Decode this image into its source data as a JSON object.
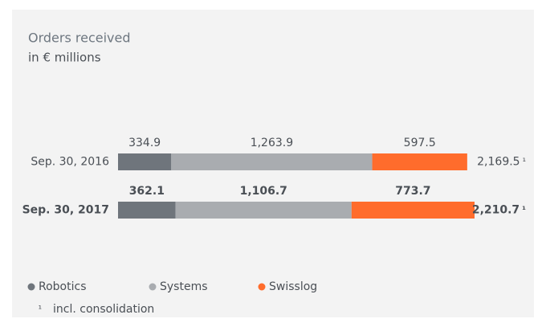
{
  "chart_data": {
    "type": "stacked-bar-horizontal",
    "title": "Orders received",
    "subtitle": "in € millions",
    "categories": [
      "Sep. 30, 2016",
      "Sep. 30, 2017"
    ],
    "series": [
      {
        "name": "Robotics",
        "color": "#6f757c",
        "values": [
          334.9,
          362.1
        ]
      },
      {
        "name": "Systems",
        "color": "#a9acb0",
        "values": [
          1263.9,
          1106.7
        ],
        "value_labels": [
          "1,263.9",
          "1,106.7"
        ]
      },
      {
        "name": "Swisslog",
        "color": "#ff6c2c",
        "values": [
          597.5,
          773.7
        ]
      }
    ],
    "totals": {
      "values": [
        2169.5,
        2210.7
      ],
      "value_labels": [
        "2,169.5",
        "2,210.7"
      ],
      "marker": "¹"
    },
    "footnote": {
      "marker": "¹",
      "text": "incl. consolidation"
    }
  }
}
